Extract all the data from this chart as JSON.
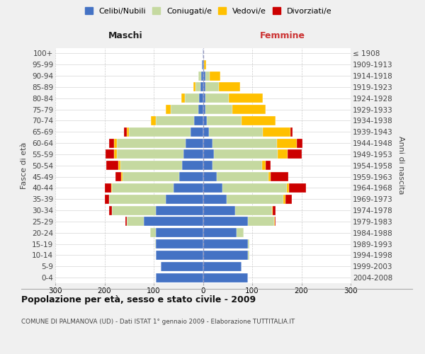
{
  "age_groups": [
    "0-4",
    "5-9",
    "10-14",
    "15-19",
    "20-24",
    "25-29",
    "30-34",
    "35-39",
    "40-44",
    "45-49",
    "50-54",
    "55-59",
    "60-64",
    "65-69",
    "70-74",
    "75-79",
    "80-84",
    "85-89",
    "90-94",
    "95-99",
    "100+"
  ],
  "birth_years": [
    "2004-2008",
    "1999-2003",
    "1994-1998",
    "1989-1993",
    "1984-1988",
    "1979-1983",
    "1974-1978",
    "1969-1973",
    "1964-1968",
    "1959-1963",
    "1954-1958",
    "1949-1953",
    "1944-1948",
    "1939-1943",
    "1934-1938",
    "1929-1933",
    "1924-1928",
    "1919-1923",
    "1914-1918",
    "1909-1913",
    "≤ 1908"
  ],
  "colors": {
    "celibi": "#4472c4",
    "coniugati": "#c5d9a0",
    "vedovi": "#ffc000",
    "divorziati": "#cc0000"
  },
  "males": {
    "celibi": [
      95,
      85,
      95,
      95,
      95,
      120,
      95,
      75,
      60,
      48,
      42,
      40,
      35,
      25,
      18,
      10,
      8,
      5,
      4,
      2,
      1
    ],
    "coniugati": [
      0,
      0,
      1,
      2,
      12,
      35,
      90,
      115,
      125,
      115,
      125,
      135,
      140,
      125,
      78,
      55,
      28,
      10,
      5,
      0,
      0
    ],
    "vedovi": [
      0,
      0,
      0,
      0,
      0,
      0,
      0,
      0,
      2,
      3,
      5,
      5,
      5,
      5,
      10,
      10,
      8,
      5,
      0,
      0,
      0
    ],
    "divorziati": [
      0,
      0,
      0,
      0,
      0,
      2,
      5,
      10,
      12,
      12,
      25,
      18,
      10,
      5,
      0,
      0,
      0,
      0,
      0,
      0,
      0
    ]
  },
  "females": {
    "nubili": [
      92,
      78,
      92,
      92,
      68,
      92,
      65,
      48,
      40,
      28,
      20,
      22,
      20,
      12,
      8,
      5,
      5,
      5,
      5,
      2,
      1
    ],
    "coniugate": [
      0,
      0,
      2,
      2,
      15,
      52,
      75,
      115,
      130,
      105,
      100,
      130,
      130,
      110,
      70,
      55,
      48,
      28,
      8,
      0,
      0
    ],
    "vedove": [
      0,
      0,
      0,
      0,
      0,
      2,
      2,
      5,
      5,
      5,
      8,
      20,
      40,
      55,
      70,
      68,
      68,
      42,
      22,
      5,
      0
    ],
    "divorziate": [
      0,
      0,
      0,
      0,
      0,
      2,
      5,
      12,
      35,
      35,
      10,
      28,
      12,
      5,
      0,
      0,
      0,
      0,
      0,
      0,
      0
    ]
  },
  "title": "Popolazione per età, sesso e stato civile - 2009",
  "subtitle": "COMUNE DI PALMANOVA (UD) - Dati ISTAT 1° gennaio 2009 - Elaborazione TUTTITALIA.IT",
  "xlabel_left": "Maschi",
  "xlabel_right": "Femmine",
  "ylabel_left": "Fasce di età",
  "ylabel_right": "Anni di nascita",
  "xlim": 300,
  "bg_color": "#f0f0f0",
  "plot_bg": "#ffffff",
  "grid_color": "#cccccc",
  "legend_labels": [
    "Celibi/Nubili",
    "Coniugati/e",
    "Vedovi/e",
    "Divorziati/e"
  ]
}
